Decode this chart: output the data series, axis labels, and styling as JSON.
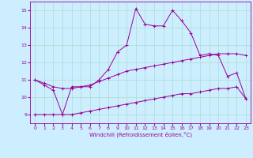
{
  "xlabel": "Windchill (Refroidissement éolien,°C)",
  "background_color": "#cceeff",
  "grid_color": "#aaddcc",
  "line_color": "#990099",
  "x_values": [
    0,
    1,
    2,
    3,
    4,
    5,
    6,
    7,
    8,
    9,
    10,
    11,
    12,
    13,
    14,
    15,
    16,
    17,
    18,
    19,
    20,
    21,
    22,
    23
  ],
  "line1_y": [
    11.0,
    10.7,
    10.4,
    9.0,
    10.6,
    10.6,
    10.6,
    11.0,
    11.6,
    12.6,
    13.0,
    15.1,
    14.2,
    14.1,
    14.1,
    15.0,
    14.4,
    13.7,
    12.4,
    12.5,
    12.4,
    11.2,
    11.4,
    9.9
  ],
  "line2_y": [
    11.0,
    10.8,
    10.6,
    10.5,
    10.5,
    10.6,
    10.7,
    10.9,
    11.1,
    11.3,
    11.5,
    11.6,
    11.7,
    11.8,
    11.9,
    12.0,
    12.1,
    12.2,
    12.3,
    12.4,
    12.5,
    12.5,
    12.5,
    12.4
  ],
  "line3_y": [
    9.0,
    9.0,
    9.0,
    9.0,
    9.0,
    9.1,
    9.2,
    9.3,
    9.4,
    9.5,
    9.6,
    9.7,
    9.8,
    9.9,
    10.0,
    10.1,
    10.2,
    10.2,
    10.3,
    10.4,
    10.5,
    10.5,
    10.6,
    9.9
  ],
  "ylim": [
    8.5,
    15.5
  ],
  "yticks": [
    9,
    10,
    11,
    12,
    13,
    14,
    15
  ],
  "xticks": [
    0,
    1,
    2,
    3,
    4,
    5,
    6,
    7,
    8,
    9,
    10,
    11,
    12,
    13,
    14,
    15,
    16,
    17,
    18,
    19,
    20,
    21,
    22,
    23
  ],
  "xlim": [
    -0.5,
    23.5
  ],
  "tick_fontsize": 4.5,
  "xlabel_fontsize": 5.0,
  "marker_size": 2.5,
  "line_width": 0.7
}
